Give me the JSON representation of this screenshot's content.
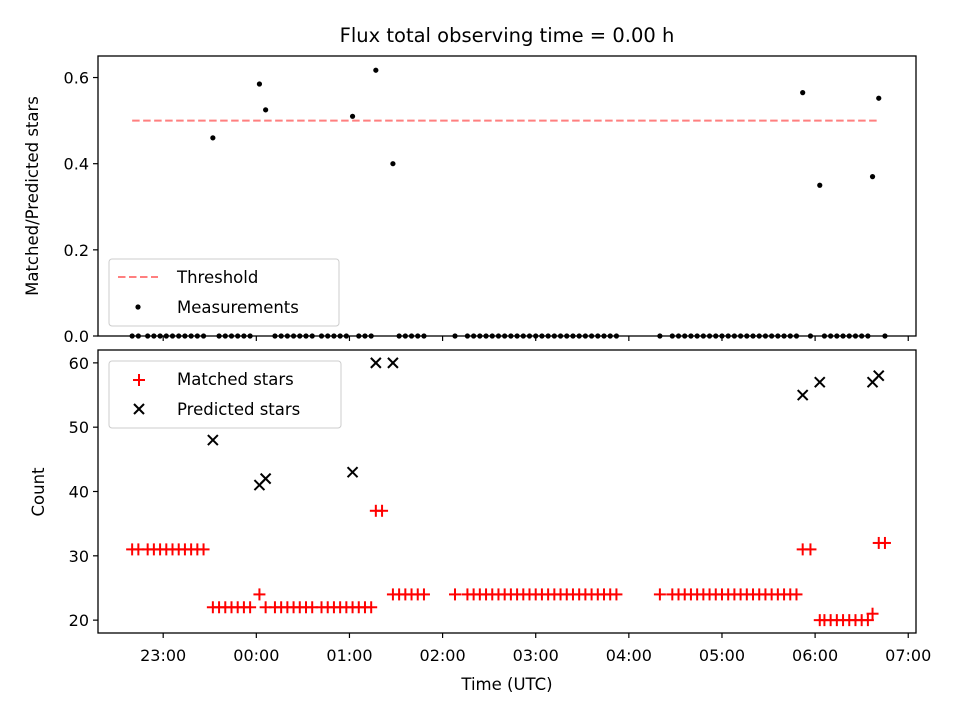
{
  "chart_data": {
    "title": "Flux total observing time = 0.00 h",
    "xlabel": "Time (UTC)",
    "x_ticks": [
      "23:00",
      "00:00",
      "01:00",
      "02:00",
      "03:00",
      "04:00",
      "05:00",
      "06:00",
      "07:00"
    ],
    "xlim": [
      "22:18",
      "07:05"
    ],
    "top_panel": {
      "type": "scatter",
      "ylabel": "Matched/Predicted stars",
      "ylim": [
        0,
        0.65
      ],
      "yticks": [
        "0.0",
        "0.2",
        "0.4",
        "0.6"
      ],
      "threshold": {
        "name": "Threshold",
        "value": 0.5,
        "x_start": "22:40",
        "x_end": "06:40",
        "color": "#ff7f7f"
      },
      "measurements": {
        "name": "Measurements",
        "color": "#000000",
        "points": [
          [
            "22:40",
            0
          ],
          [
            "22:44",
            0
          ],
          [
            "22:50",
            0
          ],
          [
            "22:54",
            0
          ],
          [
            "22:58",
            0
          ],
          [
            "23:02",
            0
          ],
          [
            "23:06",
            0
          ],
          [
            "23:10",
            0
          ],
          [
            "23:14",
            0
          ],
          [
            "23:18",
            0
          ],
          [
            "23:22",
            0
          ],
          [
            "23:26",
            0
          ],
          [
            "23:32",
            0.46
          ],
          [
            "23:36",
            0
          ],
          [
            "23:40",
            0
          ],
          [
            "23:44",
            0
          ],
          [
            "23:48",
            0
          ],
          [
            "23:52",
            0
          ],
          [
            "23:56",
            0
          ],
          [
            "00:02",
            0.585
          ],
          [
            "00:06",
            0.525
          ],
          [
            "00:12",
            0
          ],
          [
            "00:16",
            0
          ],
          [
            "00:20",
            0
          ],
          [
            "00:24",
            0
          ],
          [
            "00:28",
            0
          ],
          [
            "00:32",
            0
          ],
          [
            "00:36",
            0
          ],
          [
            "00:42",
            0
          ],
          [
            "00:46",
            0
          ],
          [
            "00:50",
            0
          ],
          [
            "00:54",
            0
          ],
          [
            "00:58",
            0
          ],
          [
            "01:02",
            0.51
          ],
          [
            "01:06",
            0
          ],
          [
            "01:10",
            0
          ],
          [
            "01:14",
            0
          ],
          [
            "01:17",
            0.617
          ],
          [
            "01:28",
            0.4
          ],
          [
            "01:32",
            0
          ],
          [
            "01:36",
            0
          ],
          [
            "01:40",
            0
          ],
          [
            "01:44",
            0
          ],
          [
            "01:48",
            0
          ],
          [
            "02:08",
            0
          ],
          [
            "02:16",
            0
          ],
          [
            "02:20",
            0
          ],
          [
            "02:24",
            0
          ],
          [
            "02:28",
            0
          ],
          [
            "02:32",
            0
          ],
          [
            "02:36",
            0
          ],
          [
            "02:40",
            0
          ],
          [
            "02:44",
            0
          ],
          [
            "02:48",
            0
          ],
          [
            "02:52",
            0
          ],
          [
            "02:56",
            0
          ],
          [
            "03:00",
            0
          ],
          [
            "03:04",
            0
          ],
          [
            "03:08",
            0
          ],
          [
            "03:12",
            0
          ],
          [
            "03:16",
            0
          ],
          [
            "03:20",
            0
          ],
          [
            "03:24",
            0
          ],
          [
            "03:28",
            0
          ],
          [
            "03:32",
            0
          ],
          [
            "03:36",
            0
          ],
          [
            "03:40",
            0
          ],
          [
            "03:44",
            0
          ],
          [
            "03:48",
            0
          ],
          [
            "03:52",
            0
          ],
          [
            "04:20",
            0
          ],
          [
            "04:28",
            0
          ],
          [
            "04:32",
            0
          ],
          [
            "04:36",
            0
          ],
          [
            "04:40",
            0
          ],
          [
            "04:44",
            0
          ],
          [
            "04:48",
            0
          ],
          [
            "04:52",
            0
          ],
          [
            "04:56",
            0
          ],
          [
            "05:00",
            0
          ],
          [
            "05:04",
            0
          ],
          [
            "05:08",
            0
          ],
          [
            "05:12",
            0
          ],
          [
            "05:16",
            0
          ],
          [
            "05:20",
            0
          ],
          [
            "05:24",
            0
          ],
          [
            "05:28",
            0
          ],
          [
            "05:32",
            0
          ],
          [
            "05:36",
            0
          ],
          [
            "05:40",
            0
          ],
          [
            "05:44",
            0
          ],
          [
            "05:48",
            0
          ],
          [
            "05:52",
            0.565
          ],
          [
            "05:57",
            0
          ],
          [
            "06:03",
            0.35
          ],
          [
            "06:06",
            0
          ],
          [
            "06:10",
            0
          ],
          [
            "06:14",
            0
          ],
          [
            "06:18",
            0
          ],
          [
            "06:22",
            0
          ],
          [
            "06:26",
            0
          ],
          [
            "06:30",
            0
          ],
          [
            "06:34",
            0
          ],
          [
            "06:37",
            0.37
          ],
          [
            "06:41",
            0.552
          ],
          [
            "06:45",
            0
          ]
        ]
      },
      "legend": {
        "position": "lower-left",
        "entries": [
          "Threshold",
          "Measurements"
        ]
      }
    },
    "bottom_panel": {
      "type": "scatter",
      "ylabel": "Count",
      "ylim": [
        18,
        62
      ],
      "yticks": [
        "20",
        "30",
        "40",
        "50",
        "60"
      ],
      "matched": {
        "name": "Matched stars",
        "color": "#ff0000",
        "points": [
          [
            "22:40",
            31
          ],
          [
            "22:44",
            31
          ],
          [
            "22:50",
            31
          ],
          [
            "22:54",
            31
          ],
          [
            "22:58",
            31
          ],
          [
            "23:02",
            31
          ],
          [
            "23:06",
            31
          ],
          [
            "23:10",
            31
          ],
          [
            "23:14",
            31
          ],
          [
            "23:18",
            31
          ],
          [
            "23:22",
            31
          ],
          [
            "23:26",
            31
          ],
          [
            "23:32",
            22
          ],
          [
            "23:36",
            22
          ],
          [
            "23:40",
            22
          ],
          [
            "23:44",
            22
          ],
          [
            "23:48",
            22
          ],
          [
            "23:52",
            22
          ],
          [
            "23:56",
            22
          ],
          [
            "00:02",
            24
          ],
          [
            "00:06",
            22
          ],
          [
            "00:12",
            22
          ],
          [
            "00:16",
            22
          ],
          [
            "00:20",
            22
          ],
          [
            "00:24",
            22
          ],
          [
            "00:28",
            22
          ],
          [
            "00:32",
            22
          ],
          [
            "00:36",
            22
          ],
          [
            "00:42",
            22
          ],
          [
            "00:46",
            22
          ],
          [
            "00:50",
            22
          ],
          [
            "00:54",
            22
          ],
          [
            "00:58",
            22
          ],
          [
            "01:02",
            22
          ],
          [
            "01:06",
            22
          ],
          [
            "01:10",
            22
          ],
          [
            "01:14",
            22
          ],
          [
            "01:17",
            37
          ],
          [
            "01:21",
            37
          ],
          [
            "01:28",
            24
          ],
          [
            "01:32",
            24
          ],
          [
            "01:36",
            24
          ],
          [
            "01:40",
            24
          ],
          [
            "01:44",
            24
          ],
          [
            "01:48",
            24
          ],
          [
            "02:08",
            24
          ],
          [
            "02:16",
            24
          ],
          [
            "02:20",
            24
          ],
          [
            "02:24",
            24
          ],
          [
            "02:28",
            24
          ],
          [
            "02:32",
            24
          ],
          [
            "02:36",
            24
          ],
          [
            "02:40",
            24
          ],
          [
            "02:44",
            24
          ],
          [
            "02:48",
            24
          ],
          [
            "02:52",
            24
          ],
          [
            "02:56",
            24
          ],
          [
            "03:00",
            24
          ],
          [
            "03:04",
            24
          ],
          [
            "03:08",
            24
          ],
          [
            "03:12",
            24
          ],
          [
            "03:16",
            24
          ],
          [
            "03:20",
            24
          ],
          [
            "03:24",
            24
          ],
          [
            "03:28",
            24
          ],
          [
            "03:32",
            24
          ],
          [
            "03:36",
            24
          ],
          [
            "03:40",
            24
          ],
          [
            "03:44",
            24
          ],
          [
            "03:48",
            24
          ],
          [
            "03:52",
            24
          ],
          [
            "04:20",
            24
          ],
          [
            "04:28",
            24
          ],
          [
            "04:32",
            24
          ],
          [
            "04:36",
            24
          ],
          [
            "04:40",
            24
          ],
          [
            "04:44",
            24
          ],
          [
            "04:48",
            24
          ],
          [
            "04:52",
            24
          ],
          [
            "04:56",
            24
          ],
          [
            "05:00",
            24
          ],
          [
            "05:04",
            24
          ],
          [
            "05:08",
            24
          ],
          [
            "05:12",
            24
          ],
          [
            "05:16",
            24
          ],
          [
            "05:20",
            24
          ],
          [
            "05:24",
            24
          ],
          [
            "05:28",
            24
          ],
          [
            "05:32",
            24
          ],
          [
            "05:36",
            24
          ],
          [
            "05:40",
            24
          ],
          [
            "05:44",
            24
          ],
          [
            "05:48",
            24
          ],
          [
            "05:52",
            31
          ],
          [
            "05:57",
            31
          ],
          [
            "06:03",
            20
          ],
          [
            "06:06",
            20
          ],
          [
            "06:10",
            20
          ],
          [
            "06:14",
            20
          ],
          [
            "06:18",
            20
          ],
          [
            "06:22",
            20
          ],
          [
            "06:26",
            20
          ],
          [
            "06:30",
            20
          ],
          [
            "06:34",
            20
          ],
          [
            "06:37",
            21
          ],
          [
            "06:41",
            32
          ],
          [
            "06:45",
            32
          ]
        ]
      },
      "predicted": {
        "name": "Predicted stars",
        "color": "#000000",
        "points": [
          [
            "23:32",
            48
          ],
          [
            "00:02",
            41
          ],
          [
            "00:06",
            42
          ],
          [
            "01:02",
            43
          ],
          [
            "01:17",
            60
          ],
          [
            "01:28",
            60
          ],
          [
            "05:52",
            55
          ],
          [
            "06:03",
            57
          ],
          [
            "06:37",
            57
          ],
          [
            "06:41",
            58
          ]
        ]
      },
      "legend": {
        "position": "upper-left",
        "entries": [
          "Matched stars",
          "Predicted stars"
        ]
      }
    }
  }
}
